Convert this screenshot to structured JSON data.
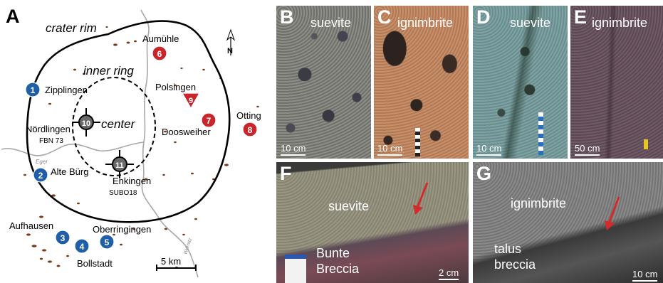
{
  "map": {
    "panel_label": "A",
    "north": "N",
    "crater_rim": "crater rim",
    "inner_ring": "inner ring",
    "center": "center",
    "scale": "5 km",
    "river_eger": "Eger",
    "river_wornitz": "Wörnitz",
    "sites": [
      {
        "num": "1",
        "name": "Zipplingen",
        "color": "#1f5fa8"
      },
      {
        "num": "2",
        "name": "Alte Bürg",
        "color": "#1f5fa8"
      },
      {
        "num": "3",
        "name": "Aufhausen",
        "color": "#1f5fa8"
      },
      {
        "num": "4",
        "name": "Bollstadt",
        "color": "#1f5fa8"
      },
      {
        "num": "5",
        "name": "Oberringingen",
        "color": "#1f5fa8"
      },
      {
        "num": "6",
        "name": "Aumühle",
        "color": "#c8262b"
      },
      {
        "num": "7",
        "name": "Doosweiher",
        "color": "#c8262b"
      },
      {
        "num": "8",
        "name": "Otting",
        "color": "#c8262b"
      },
      {
        "num": "9",
        "name": "Polsingen",
        "color": "#c8262b"
      },
      {
        "num": "10",
        "name": "Nördlingen",
        "sub": "FBN 73",
        "color": "#6a6a6a"
      },
      {
        "num": "11",
        "name": "Enkingen",
        "sub": "SUBO18",
        "color": "#6a6a6a"
      }
    ]
  },
  "photos": {
    "B": {
      "label": "B",
      "title": "suevite",
      "scale": "10 cm"
    },
    "C": {
      "label": "C",
      "title": "ignimbrite",
      "scale": "10 cm"
    },
    "D": {
      "label": "D",
      "title": "suevite",
      "scale": "10 cm"
    },
    "E": {
      "label": "E",
      "title": "ignimbrite",
      "scale": "50 cm"
    },
    "F": {
      "label": "F",
      "title": "suevite",
      "lower1": "Bunte",
      "lower2": "Breccia",
      "scale": "2 cm"
    },
    "G": {
      "label": "G",
      "title": "ignimbrite",
      "lower1": "talus",
      "lower2": "breccia",
      "scale": "10 cm"
    }
  }
}
